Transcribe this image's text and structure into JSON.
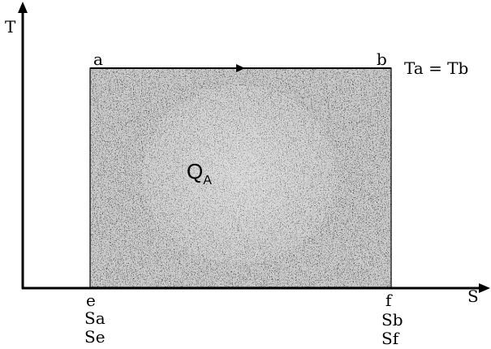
{
  "axes": {
    "y_label": "T",
    "x_label": "S"
  },
  "corners": {
    "a": "a",
    "b": "b",
    "e": "e",
    "f": "f"
  },
  "equality": "Ta = Tb",
  "heat_label": {
    "main": "Q",
    "sub": "A"
  },
  "entropy_left": [
    "Sa",
    "Se"
  ],
  "entropy_right": [
    "Sb",
    "Sf"
  ],
  "colors": {
    "ink": "#000000",
    "fill_dark": "#3a3a3a",
    "fill_light": "#c8c8c8",
    "background": "#ffffff"
  }
}
